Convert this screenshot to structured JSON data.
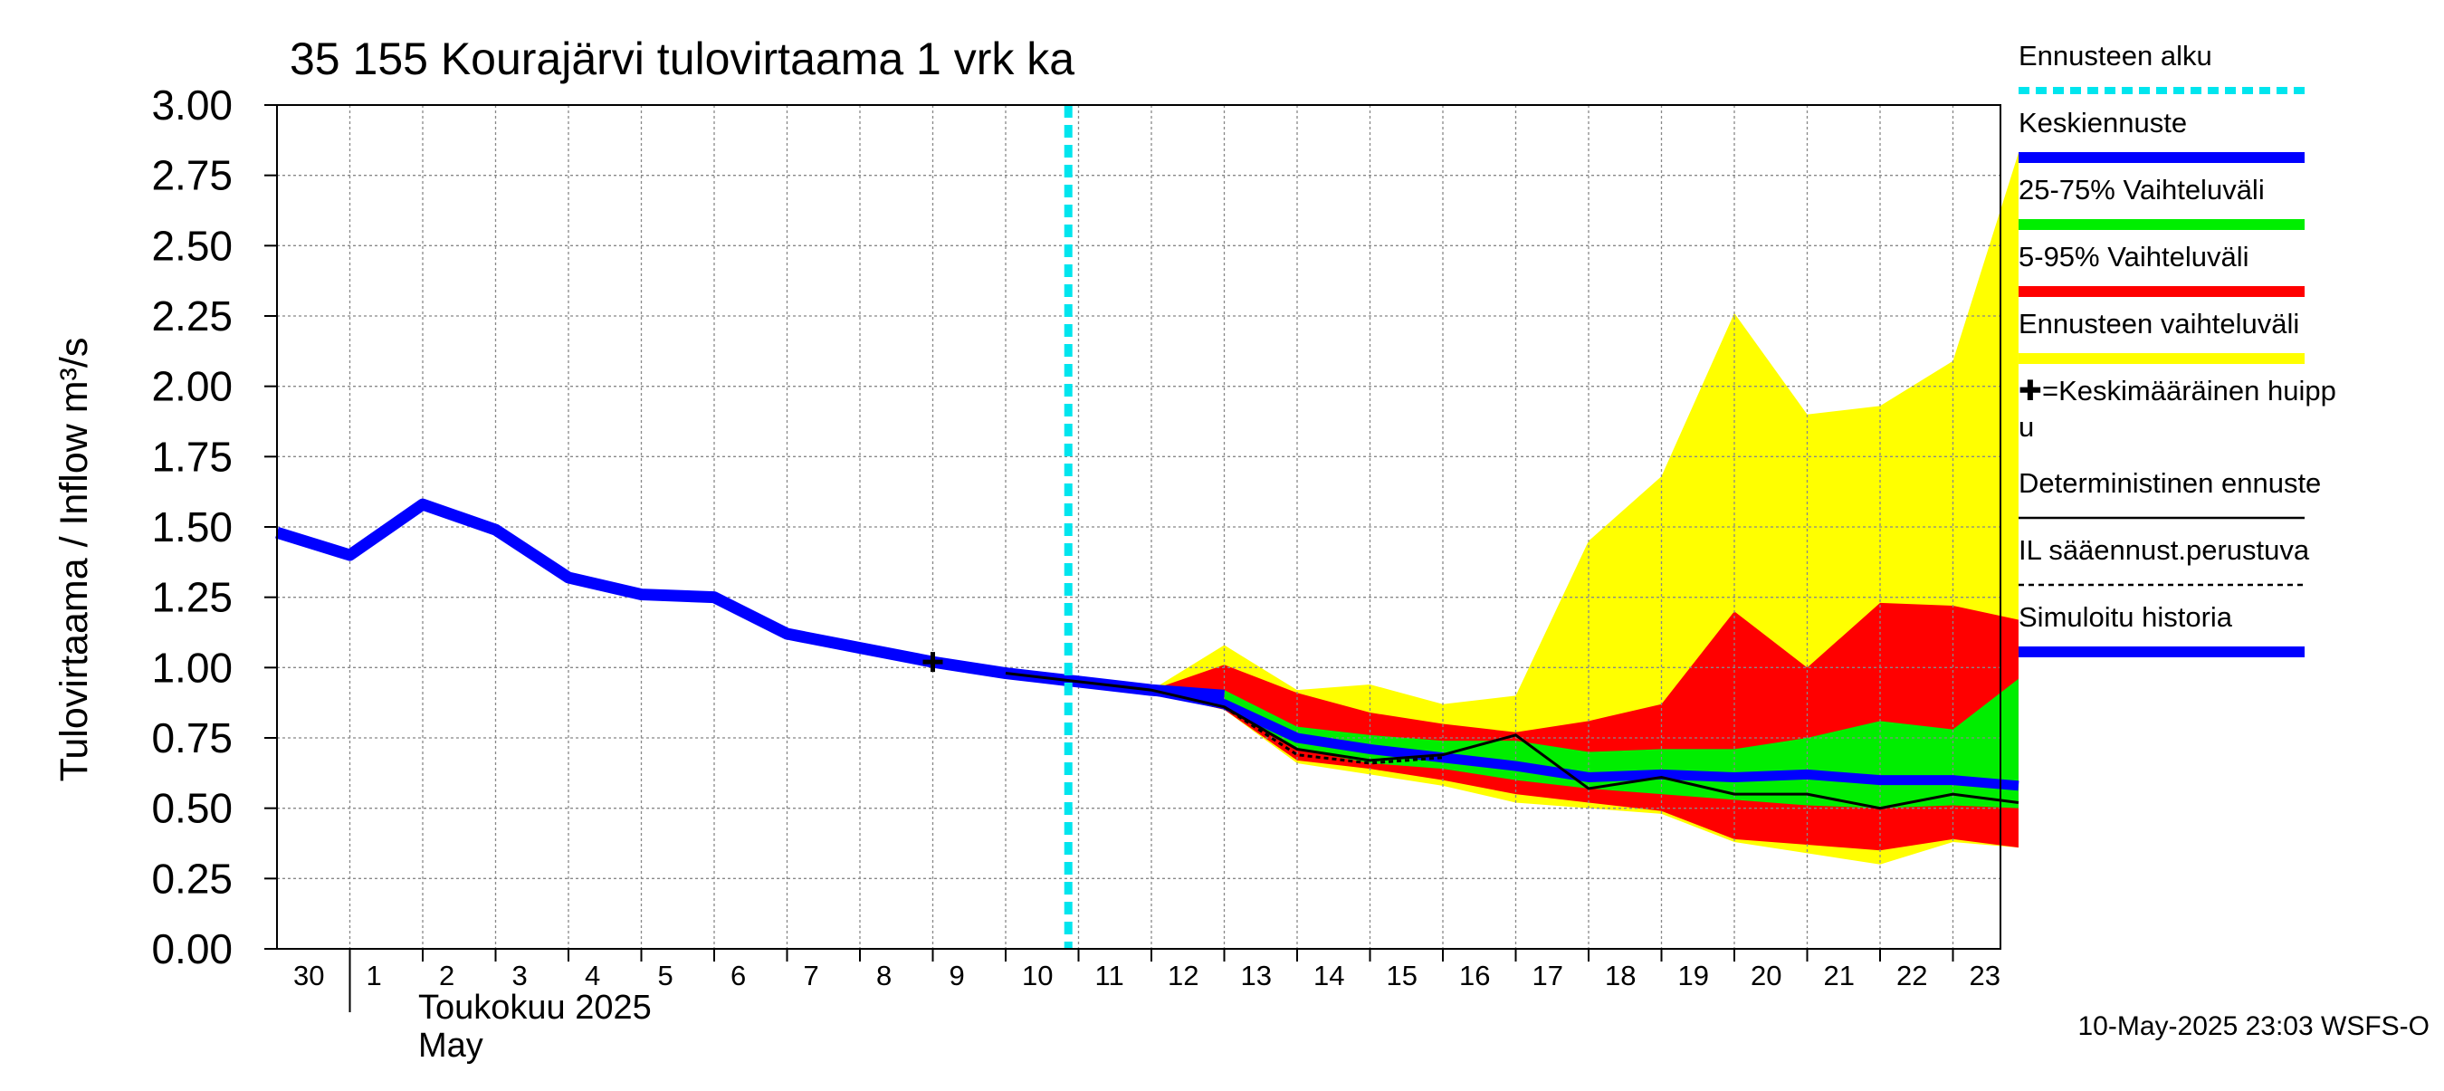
{
  "chart_data": {
    "type": "area",
    "title": "35 155 Kourajärvi tulovirtaama 1 vrk ka",
    "ylabel": "Tulovirtaama / Inflow     m³/s",
    "xlabel_month": "Toukokuu  2025",
    "xlabel_month_en": "May",
    "timestamp": "10-May-2025 23:03 WSFS-O",
    "ylim": [
      0,
      3
    ],
    "y_ticks": [
      "0.00",
      "0.25",
      "0.50",
      "0.75",
      "1.00",
      "1.25",
      "1.50",
      "1.75",
      "2.00",
      "2.25",
      "2.50",
      "2.75",
      "3.00"
    ],
    "x_ticks": [
      "30",
      "1",
      "2",
      "3",
      "4",
      "5",
      "6",
      "7",
      "8",
      "9",
      "10",
      "11",
      "12",
      "13",
      "14",
      "15",
      "16",
      "17",
      "18",
      "19",
      "20",
      "21",
      "22",
      "23"
    ],
    "forecast_start_day": 9.86,
    "grid": true,
    "legend_position": "right",
    "legend": [
      {
        "label": "Ennusteen alku",
        "color": "#00e5ee",
        "style": "dotted"
      },
      {
        "label": "Keskiennuste",
        "color": "#0000ff",
        "style": "solid"
      },
      {
        "label": "25-75% Vaihteluväli",
        "color": "#00ee00",
        "style": "solid"
      },
      {
        "label": "5-95% Vaihteluväli",
        "color": "#ff0000",
        "style": "solid"
      },
      {
        "label": "Ennusteen vaihteluväli",
        "color": "#ffff00",
        "style": "solid"
      },
      {
        "label": "✚=Keskimääräinen huipp",
        "label2": "u",
        "color": "#000000",
        "style": "none"
      },
      {
        "label": "Deterministinen ennuste",
        "color": "#000000",
        "style": "thin"
      },
      {
        "label": "IL sääennust.perustuva",
        "color": "#000000",
        "style": "dashed"
      },
      {
        "label": "Simuloitu historia",
        "color": "#0000ff",
        "style": "solid"
      }
    ],
    "series": [
      {
        "name": "Simuloitu historia",
        "points": [
          [
            -1,
            1.48
          ],
          [
            0,
            1.4
          ],
          [
            1,
            1.58
          ],
          [
            2,
            1.49
          ],
          [
            3,
            1.32
          ],
          [
            4,
            1.26
          ],
          [
            5,
            1.25
          ],
          [
            6,
            1.12
          ],
          [
            7,
            1.07
          ],
          [
            8,
            1.02
          ],
          [
            9,
            0.98
          ],
          [
            10,
            0.95
          ],
          [
            11,
            0.92
          ],
          [
            12,
            0.9
          ]
        ]
      },
      {
        "name": "Keskiennuste",
        "points": [
          [
            9,
            0.98
          ],
          [
            10,
            0.95
          ],
          [
            11,
            0.92
          ],
          [
            12,
            0.87
          ],
          [
            13,
            0.75
          ],
          [
            14,
            0.71
          ],
          [
            15,
            0.68
          ],
          [
            16,
            0.65
          ],
          [
            17,
            0.61
          ],
          [
            18,
            0.62
          ],
          [
            19,
            0.61
          ],
          [
            20,
            0.62
          ],
          [
            21,
            0.6
          ],
          [
            22,
            0.6
          ],
          [
            22.9,
            0.58
          ]
        ]
      },
      {
        "name": "Deterministinen ennuste",
        "points": [
          [
            9,
            0.98
          ],
          [
            10,
            0.95
          ],
          [
            11,
            0.92
          ],
          [
            12,
            0.86
          ],
          [
            13,
            0.71
          ],
          [
            14,
            0.67
          ],
          [
            15,
            0.69
          ],
          [
            16,
            0.76
          ],
          [
            17,
            0.57
          ],
          [
            18,
            0.61
          ],
          [
            19,
            0.55
          ],
          [
            20,
            0.55
          ],
          [
            21,
            0.5
          ],
          [
            22,
            0.55
          ],
          [
            22.9,
            0.52
          ]
        ]
      },
      {
        "name": "IL sääennust.perustuva",
        "points": [
          [
            12,
            0.86
          ],
          [
            13,
            0.69
          ],
          [
            14,
            0.66
          ],
          [
            15,
            0.68
          ]
        ]
      },
      {
        "name": "Ennusteen vaihteluväli",
        "upper": [
          [
            9,
            0.98
          ],
          [
            10,
            0.95
          ],
          [
            11,
            0.92
          ],
          [
            12,
            1.08
          ],
          [
            13,
            0.92
          ],
          [
            14,
            0.94
          ],
          [
            15,
            0.87
          ],
          [
            16,
            0.9
          ],
          [
            17,
            1.45
          ],
          [
            18,
            1.68
          ],
          [
            19,
            2.26
          ],
          [
            20,
            1.9
          ],
          [
            21,
            1.93
          ],
          [
            22,
            2.09
          ],
          [
            22.9,
            2.83
          ]
        ],
        "lower": [
          [
            9,
            0.98
          ],
          [
            10,
            0.95
          ],
          [
            11,
            0.91
          ],
          [
            12,
            0.85
          ],
          [
            13,
            0.66
          ],
          [
            14,
            0.62
          ],
          [
            15,
            0.58
          ],
          [
            16,
            0.52
          ],
          [
            17,
            0.5
          ],
          [
            18,
            0.48
          ],
          [
            19,
            0.38
          ],
          [
            20,
            0.34
          ],
          [
            21,
            0.3
          ],
          [
            22,
            0.38
          ],
          [
            22.9,
            0.36
          ]
        ]
      },
      {
        "name": "5-95% Vaihteluväli",
        "upper": [
          [
            9,
            0.98
          ],
          [
            10,
            0.95
          ],
          [
            11,
            0.92
          ],
          [
            12,
            1.01
          ],
          [
            13,
            0.91
          ],
          [
            14,
            0.84
          ],
          [
            15,
            0.8
          ],
          [
            16,
            0.77
          ],
          [
            17,
            0.81
          ],
          [
            18,
            0.87
          ],
          [
            19,
            1.2
          ],
          [
            20,
            1.0
          ],
          [
            21,
            1.23
          ],
          [
            22,
            1.22
          ],
          [
            22.9,
            1.17
          ]
        ],
        "lower": [
          [
            9,
            0.98
          ],
          [
            10,
            0.95
          ],
          [
            11,
            0.91
          ],
          [
            12,
            0.85
          ],
          [
            13,
            0.67
          ],
          [
            14,
            0.64
          ],
          [
            15,
            0.6
          ],
          [
            16,
            0.55
          ],
          [
            17,
            0.52
          ],
          [
            18,
            0.49
          ],
          [
            19,
            0.39
          ],
          [
            20,
            0.37
          ],
          [
            21,
            0.35
          ],
          [
            22,
            0.39
          ],
          [
            22.9,
            0.36
          ]
        ]
      },
      {
        "name": "25-75% Vaihteluväli",
        "upper": [
          [
            9,
            0.98
          ],
          [
            10,
            0.95
          ],
          [
            11,
            0.92
          ],
          [
            12,
            0.92
          ],
          [
            13,
            0.79
          ],
          [
            14,
            0.76
          ],
          [
            15,
            0.74
          ],
          [
            16,
            0.74
          ],
          [
            17,
            0.7
          ],
          [
            18,
            0.71
          ],
          [
            19,
            0.71
          ],
          [
            20,
            0.75
          ],
          [
            21,
            0.81
          ],
          [
            22,
            0.78
          ],
          [
            22.9,
            0.96
          ]
        ],
        "lower": [
          [
            9,
            0.98
          ],
          [
            10,
            0.95
          ],
          [
            11,
            0.91
          ],
          [
            12,
            0.86
          ],
          [
            13,
            0.71
          ],
          [
            14,
            0.66
          ],
          [
            15,
            0.64
          ],
          [
            16,
            0.6
          ],
          [
            17,
            0.57
          ],
          [
            18,
            0.55
          ],
          [
            19,
            0.53
          ],
          [
            20,
            0.51
          ],
          [
            21,
            0.5
          ],
          [
            22,
            0.51
          ],
          [
            22.9,
            0.5
          ]
        ]
      }
    ],
    "peak_marker": {
      "x": 8,
      "y": 1.02
    }
  }
}
